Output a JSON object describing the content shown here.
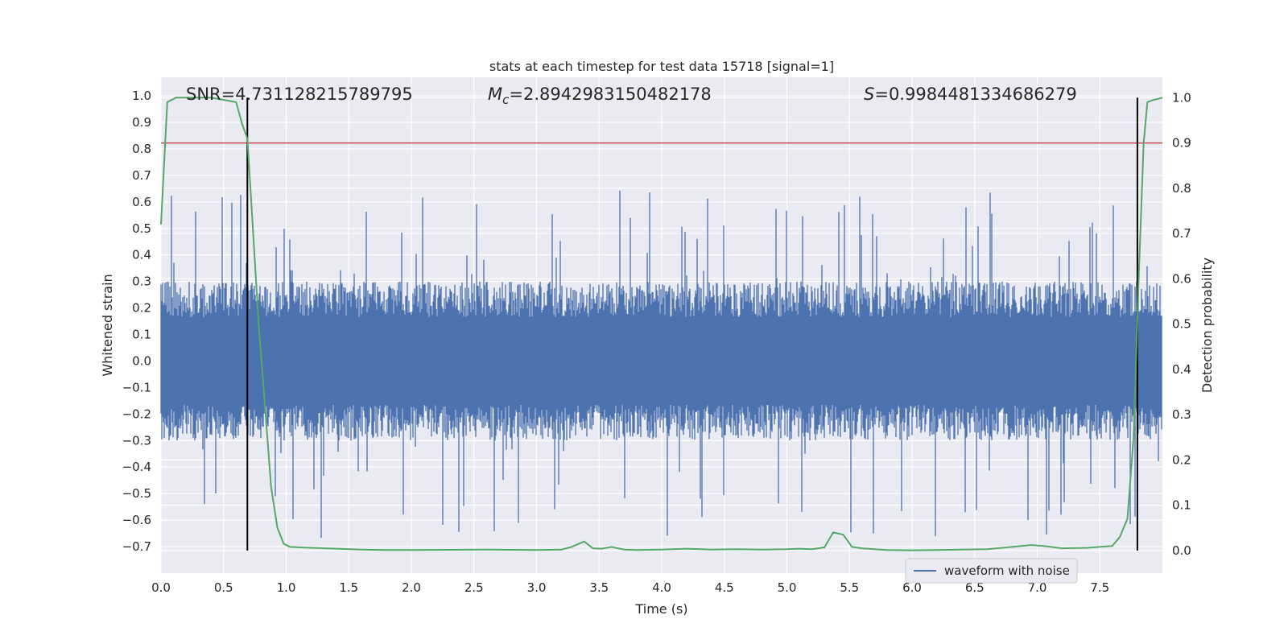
{
  "chart_data": {
    "type": "line",
    "title": "stats at each timestep for test data 15718 [signal=1]",
    "xlabel": "Time (s)",
    "ylabel": "Whitened strain",
    "y2label": "Detection probability",
    "xlim": [
      0.0,
      8.0
    ],
    "ylim": [
      -0.8,
      1.07
    ],
    "y2lim": [
      -0.05,
      1.045
    ],
    "x_ticks": [
      "0.0",
      "0.5",
      "1.0",
      "1.5",
      "2.0",
      "2.5",
      "3.0",
      "3.5",
      "4.0",
      "4.5",
      "5.0",
      "5.5",
      "6.0",
      "6.5",
      "7.0",
      "7.5"
    ],
    "y_ticks": [
      "1.0",
      "0.9",
      "0.8",
      "0.7",
      "0.6",
      "0.5",
      "0.4",
      "0.3",
      "0.2",
      "0.1",
      "0.0",
      "−0.1",
      "−0.2",
      "−0.3",
      "−0.4",
      "−0.5",
      "−0.6",
      "−0.7"
    ],
    "y2_ticks": [
      "1.0",
      "0.9",
      "0.8",
      "0.7",
      "0.6",
      "0.5",
      "0.4",
      "0.3",
      "0.2",
      "0.1",
      "0.0"
    ],
    "grid": true,
    "annotations": {
      "snr": "SNR=4.731128215789795",
      "mc_symbol": "M",
      "mc_sub": "c",
      "mc_value": "=2.8942983150482178",
      "s_symbol": "S",
      "s_value": "=0.9984481334686279"
    },
    "legend": {
      "placement": "bottom-right",
      "entries": [
        "waveform with noise"
      ]
    },
    "colors": {
      "waveform": "#4c72b0",
      "probability": "#55a868",
      "threshold": "#c44e52",
      "marker": "#000000",
      "background": "#eaeaf2",
      "grid": "#ffffff"
    },
    "series": [
      {
        "name": "waveform with noise",
        "axis": "left",
        "envelope_typical": [
          -0.3,
          0.3
        ],
        "envelope_max": [
          -0.67,
          0.65
        ]
      },
      {
        "axis": "right",
        "x": [
          0.0,
          0.05,
          0.12,
          0.2,
          0.4,
          0.6,
          0.65,
          0.69,
          0.73,
          0.78,
          0.83,
          0.88,
          0.93,
          0.98,
          1.03,
          1.1,
          1.2,
          1.4,
          1.6,
          1.8,
          2.0,
          2.3,
          2.6,
          2.8,
          3.0,
          3.2,
          3.28,
          3.38,
          3.45,
          3.52,
          3.6,
          3.7,
          3.8,
          4.0,
          4.2,
          4.4,
          4.6,
          4.8,
          5.0,
          5.1,
          5.2,
          5.3,
          5.37,
          5.45,
          5.52,
          5.6,
          5.7,
          5.8,
          6.0,
          6.2,
          6.4,
          6.6,
          6.8,
          6.95,
          7.05,
          7.2,
          7.4,
          7.6,
          7.66,
          7.72,
          7.77,
          7.81,
          7.85,
          7.88,
          7.93,
          8.0
        ],
        "y": [
          0.72,
          0.99,
          1.0,
          1.0,
          1.0,
          0.99,
          0.94,
          0.91,
          0.73,
          0.5,
          0.32,
          0.14,
          0.05,
          0.015,
          0.008,
          0.007,
          0.006,
          0.004,
          0.002,
          0.001,
          0.001,
          0.0015,
          0.002,
          0.0015,
          0.001,
          0.002,
          0.008,
          0.02,
          0.005,
          0.004,
          0.008,
          0.002,
          0.001,
          0.002,
          0.004,
          0.002,
          0.003,
          0.002,
          0.003,
          0.004,
          0.003,
          0.007,
          0.04,
          0.035,
          0.008,
          0.005,
          0.003,
          0.001,
          0.0005,
          0.001,
          0.002,
          0.003,
          0.008,
          0.012,
          0.01,
          0.005,
          0.006,
          0.01,
          0.03,
          0.07,
          0.25,
          0.6,
          0.9,
          0.99,
          0.995,
          1.0
        ]
      }
    ],
    "threshold_probability": 0.9,
    "markers_x": [
      0.69,
      7.8
    ]
  }
}
